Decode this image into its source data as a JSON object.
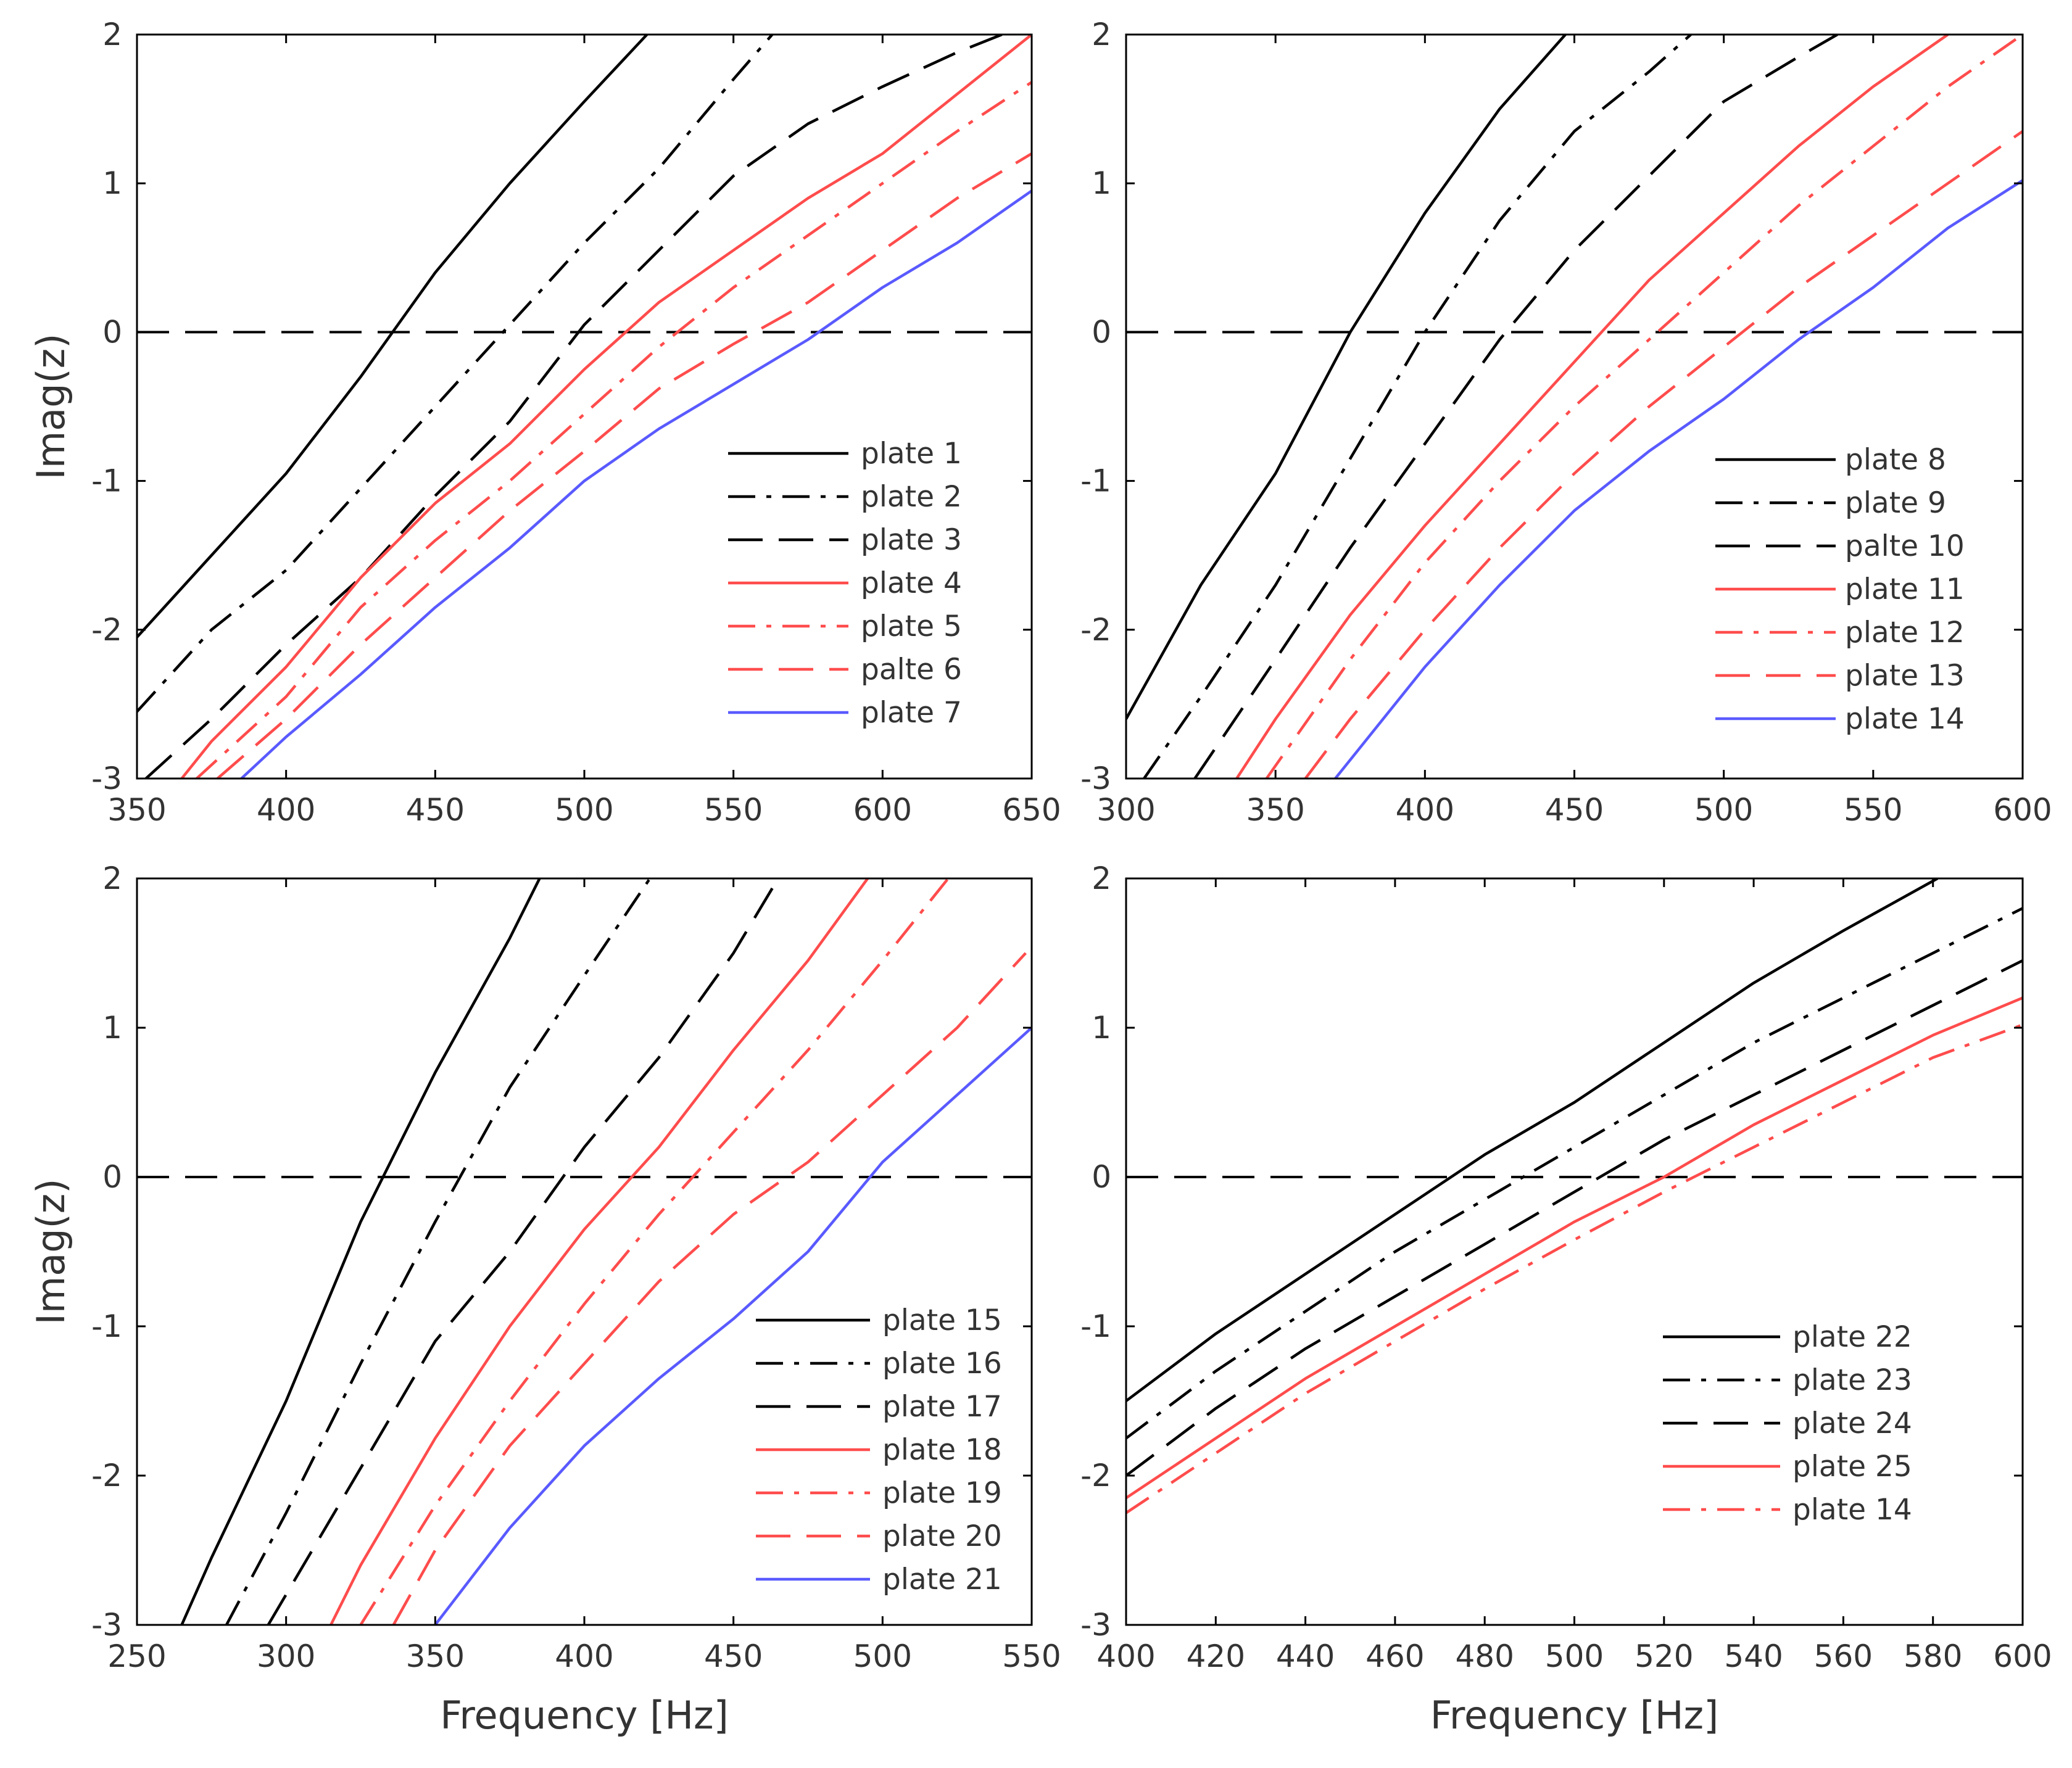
{
  "chart_data": [
    {
      "type": "line",
      "xlabel": "",
      "ylabel": "Imag(z)",
      "xlim": [
        350,
        650
      ],
      "ylim": [
        -3,
        2
      ],
      "xticks": [
        "350",
        "400",
        "450",
        "500",
        "550",
        "600",
        "650"
      ],
      "yticks": [
        "-3",
        "-2",
        "-1",
        "0",
        "1",
        "2"
      ],
      "legend_position": "bottom-right",
      "series": [
        {
          "name": "plate 1",
          "color": "#000000",
          "dash": "solid",
          "x": [
            350,
            375,
            400,
            425,
            450,
            475,
            500,
            521
          ],
          "y": [
            -2.05,
            -1.5,
            -0.95,
            -0.3,
            0.4,
            1.0,
            1.55,
            2.0
          ]
        },
        {
          "name": "plate 2",
          "color": "#000000",
          "dash": "dashdot",
          "x": [
            350,
            375,
            400,
            425,
            450,
            475,
            500,
            525,
            550,
            563
          ],
          "y": [
            -2.55,
            -2.0,
            -1.6,
            -1.05,
            -0.5,
            0.05,
            0.6,
            1.1,
            1.7,
            2.0
          ]
        },
        {
          "name": "plate 3",
          "color": "#000000",
          "dash": "dashed",
          "x": [
            353,
            375,
            400,
            425,
            450,
            475,
            500,
            525,
            550,
            575,
            600,
            625,
            640
          ],
          "y": [
            -3.0,
            -2.6,
            -2.1,
            -1.65,
            -1.1,
            -0.6,
            0.05,
            0.55,
            1.05,
            1.4,
            1.65,
            1.88,
            2.0
          ]
        },
        {
          "name": "plate 4",
          "color": "#ff4c4c",
          "dash": "solid",
          "x": [
            365,
            375,
            400,
            425,
            450,
            475,
            500,
            525,
            550,
            575,
            600,
            625,
            650
          ],
          "y": [
            -3.0,
            -2.75,
            -2.25,
            -1.65,
            -1.15,
            -0.75,
            -0.25,
            0.2,
            0.55,
            0.9,
            1.2,
            1.6,
            2.0
          ]
        },
        {
          "name": "plate 5",
          "color": "#ff4c4c",
          "dash": "dashdot",
          "x": [
            370,
            400,
            425,
            450,
            475,
            500,
            525,
            550,
            575,
            600,
            625,
            650
          ],
          "y": [
            -3.0,
            -2.45,
            -1.85,
            -1.4,
            -1.0,
            -0.55,
            -0.1,
            0.3,
            0.65,
            1.0,
            1.35,
            1.68
          ]
        },
        {
          "name": "palte 6",
          "color": "#ff4c4c",
          "dash": "dashed",
          "x": [
            377,
            400,
            425,
            450,
            475,
            500,
            525,
            550,
            575,
            600,
            625,
            650
          ],
          "y": [
            -3.0,
            -2.6,
            -2.1,
            -1.65,
            -1.2,
            -0.8,
            -0.38,
            -0.08,
            0.2,
            0.55,
            0.9,
            1.2
          ]
        },
        {
          "name": "plate 7",
          "color": "#5a5aff",
          "dash": "solid",
          "x": [
            385,
            400,
            425,
            450,
            475,
            500,
            525,
            550,
            575,
            600,
            625,
            650
          ],
          "y": [
            -3.0,
            -2.72,
            -2.3,
            -1.85,
            -1.45,
            -1.0,
            -0.65,
            -0.35,
            -0.05,
            0.3,
            0.6,
            0.95
          ]
        }
      ]
    },
    {
      "type": "line",
      "xlabel": "",
      "ylabel": "",
      "xlim": [
        300,
        600
      ],
      "ylim": [
        -3,
        2
      ],
      "xticks": [
        "300",
        "350",
        "400",
        "450",
        "500",
        "550",
        "600"
      ],
      "yticks": [
        "-3",
        "-2",
        "-1",
        "0",
        "1",
        "2"
      ],
      "legend_position": "bottom-right",
      "series": [
        {
          "name": "plate 8",
          "color": "#000000",
          "dash": "solid",
          "x": [
            300,
            325,
            350,
            375,
            400,
            425,
            447
          ],
          "y": [
            -2.6,
            -1.7,
            -0.95,
            0.0,
            0.8,
            1.5,
            2.0
          ]
        },
        {
          "name": "plate 9",
          "color": "#000000",
          "dash": "dashdot",
          "x": [
            306,
            325,
            350,
            375,
            400,
            425,
            450,
            475,
            489
          ],
          "y": [
            -3.0,
            -2.45,
            -1.7,
            -0.85,
            0.0,
            0.75,
            1.35,
            1.75,
            2.0
          ]
        },
        {
          "name": "palte 10",
          "color": "#000000",
          "dash": "dashed",
          "x": [
            323,
            350,
            375,
            400,
            425,
            450,
            475,
            500,
            525,
            538
          ],
          "y": [
            -3.0,
            -2.2,
            -1.45,
            -0.75,
            -0.05,
            0.55,
            1.05,
            1.55,
            1.85,
            2.0
          ]
        },
        {
          "name": "plate 11",
          "color": "#ff4c4c",
          "dash": "solid",
          "x": [
            337,
            350,
            375,
            400,
            425,
            450,
            475,
            500,
            525,
            550,
            575
          ],
          "y": [
            -3.0,
            -2.6,
            -1.9,
            -1.3,
            -0.75,
            -0.2,
            0.35,
            0.8,
            1.25,
            1.65,
            2.0
          ]
        },
        {
          "name": "plate 12",
          "color": "#ff4c4c",
          "dash": "dashdot",
          "x": [
            347,
            375,
            400,
            425,
            450,
            475,
            500,
            525,
            550,
            575,
            600
          ],
          "y": [
            -3.0,
            -2.2,
            -1.55,
            -1.0,
            -0.5,
            -0.05,
            0.4,
            0.85,
            1.25,
            1.65,
            2.0
          ]
        },
        {
          "name": "plate 13",
          "color": "#ff4c4c",
          "dash": "dashed",
          "x": [
            360,
            375,
            400,
            425,
            450,
            475,
            500,
            525,
            550,
            575,
            600
          ],
          "y": [
            -3.0,
            -2.6,
            -2.0,
            -1.45,
            -0.95,
            -0.5,
            -0.1,
            0.3,
            0.65,
            1.0,
            1.35
          ]
        },
        {
          "name": "plate 14",
          "color": "#5a5aff",
          "dash": "solid",
          "x": [
            370,
            400,
            425,
            450,
            475,
            500,
            525,
            550,
            575,
            600
          ],
          "y": [
            -3.0,
            -2.25,
            -1.7,
            -1.2,
            -0.8,
            -0.45,
            -0.05,
            0.3,
            0.7,
            1.02
          ]
        }
      ]
    },
    {
      "type": "line",
      "xlabel": "Frequency [Hz]",
      "ylabel": "Imag(z)",
      "xlim": [
        250,
        550
      ],
      "ylim": [
        -3,
        2
      ],
      "xticks": [
        "250",
        "300",
        "350",
        "400",
        "450",
        "500",
        "550"
      ],
      "yticks": [
        "-3",
        "-2",
        "-1",
        "0",
        "1",
        "2"
      ],
      "legend_position": "bottom-right",
      "series": [
        {
          "name": "plate 15",
          "color": "#000000",
          "dash": "solid",
          "x": [
            265,
            275,
            300,
            325,
            350,
            375,
            385
          ],
          "y": [
            -3.0,
            -2.55,
            -1.5,
            -0.3,
            0.7,
            1.6,
            2.0
          ]
        },
        {
          "name": "plate 16",
          "color": "#000000",
          "dash": "dashdot",
          "x": [
            280,
            300,
            325,
            350,
            375,
            400,
            422
          ],
          "y": [
            -3.0,
            -2.25,
            -1.25,
            -0.3,
            0.6,
            1.35,
            2.0
          ]
        },
        {
          "name": "plate 17",
          "color": "#000000",
          "dash": "dashed",
          "x": [
            294,
            325,
            350,
            375,
            400,
            425,
            450,
            465
          ],
          "y": [
            -3.0,
            -1.95,
            -1.1,
            -0.5,
            0.2,
            0.8,
            1.5,
            2.0
          ]
        },
        {
          "name": "plate 18",
          "color": "#ff4c4c",
          "dash": "solid",
          "x": [
            315,
            325,
            350,
            375,
            400,
            425,
            450,
            475,
            495
          ],
          "y": [
            -3.0,
            -2.6,
            -1.75,
            -1.0,
            -0.35,
            0.2,
            0.85,
            1.45,
            2.0
          ]
        },
        {
          "name": "plate 19",
          "color": "#ff4c4c",
          "dash": "dashdot",
          "x": [
            325,
            350,
            375,
            400,
            425,
            450,
            475,
            500,
            522
          ],
          "y": [
            -3.0,
            -2.2,
            -1.5,
            -0.85,
            -0.25,
            0.3,
            0.85,
            1.45,
            2.0
          ]
        },
        {
          "name": "plate 20",
          "color": "#ff4c4c",
          "dash": "dashed",
          "x": [
            336,
            350,
            375,
            400,
            425,
            450,
            475,
            500,
            525,
            548
          ],
          "y": [
            -3.0,
            -2.5,
            -1.8,
            -1.25,
            -0.7,
            -0.25,
            0.1,
            0.55,
            1.0,
            1.5
          ]
        },
        {
          "name": "plate 21",
          "color": "#5a5aff",
          "dash": "solid",
          "x": [
            350,
            375,
            400,
            425,
            450,
            475,
            500,
            525,
            550
          ],
          "y": [
            -3.0,
            -2.35,
            -1.8,
            -1.35,
            -0.95,
            -0.5,
            0.1,
            0.55,
            1.0
          ]
        }
      ]
    },
    {
      "type": "line",
      "xlabel": "Frequency [Hz]",
      "ylabel": "",
      "xlim": [
        400,
        600
      ],
      "ylim": [
        -3,
        2
      ],
      "xticks": [
        "400",
        "420",
        "440",
        "460",
        "480",
        "500",
        "520",
        "540",
        "560",
        "580",
        "600"
      ],
      "yticks": [
        "-3",
        "-2",
        "-1",
        "0",
        "1",
        "2"
      ],
      "legend_position": "bottom-right",
      "series": [
        {
          "name": "plate 22",
          "color": "#000000",
          "dash": "solid",
          "x": [
            400,
            420,
            440,
            460,
            480,
            500,
            520,
            540,
            560,
            581
          ],
          "y": [
            -1.5,
            -1.05,
            -0.65,
            -0.25,
            0.15,
            0.5,
            0.9,
            1.3,
            1.65,
            2.0
          ]
        },
        {
          "name": "plate 23",
          "color": "#000000",
          "dash": "dashdot",
          "x": [
            400,
            420,
            440,
            460,
            480,
            500,
            520,
            540,
            560,
            580,
            600
          ],
          "y": [
            -1.75,
            -1.3,
            -0.9,
            -0.5,
            -0.15,
            0.2,
            0.55,
            0.9,
            1.2,
            1.5,
            1.8
          ]
        },
        {
          "name": "plate 24",
          "color": "#000000",
          "dash": "dashed",
          "x": [
            400,
            420,
            440,
            460,
            480,
            500,
            520,
            540,
            560,
            580,
            600
          ],
          "y": [
            -2.0,
            -1.55,
            -1.15,
            -0.8,
            -0.45,
            -0.1,
            0.25,
            0.55,
            0.85,
            1.15,
            1.45
          ]
        },
        {
          "name": "plate 25",
          "color": "#ff4c4c",
          "dash": "solid",
          "x": [
            400,
            420,
            440,
            460,
            480,
            500,
            520,
            540,
            560,
            580,
            600
          ],
          "y": [
            -2.15,
            -1.75,
            -1.35,
            -1.0,
            -0.65,
            -0.3,
            0.0,
            0.35,
            0.65,
            0.95,
            1.2
          ]
        },
        {
          "name": "plate 14",
          "color": "#ff4c4c",
          "dash": "dashdot",
          "x": [
            400,
            420,
            440,
            460,
            480,
            500,
            520,
            540,
            560,
            580,
            600
          ],
          "y": [
            -2.25,
            -1.85,
            -1.45,
            -1.1,
            -0.75,
            -0.42,
            -0.1,
            0.2,
            0.5,
            0.8,
            1.02
          ]
        }
      ]
    }
  ]
}
